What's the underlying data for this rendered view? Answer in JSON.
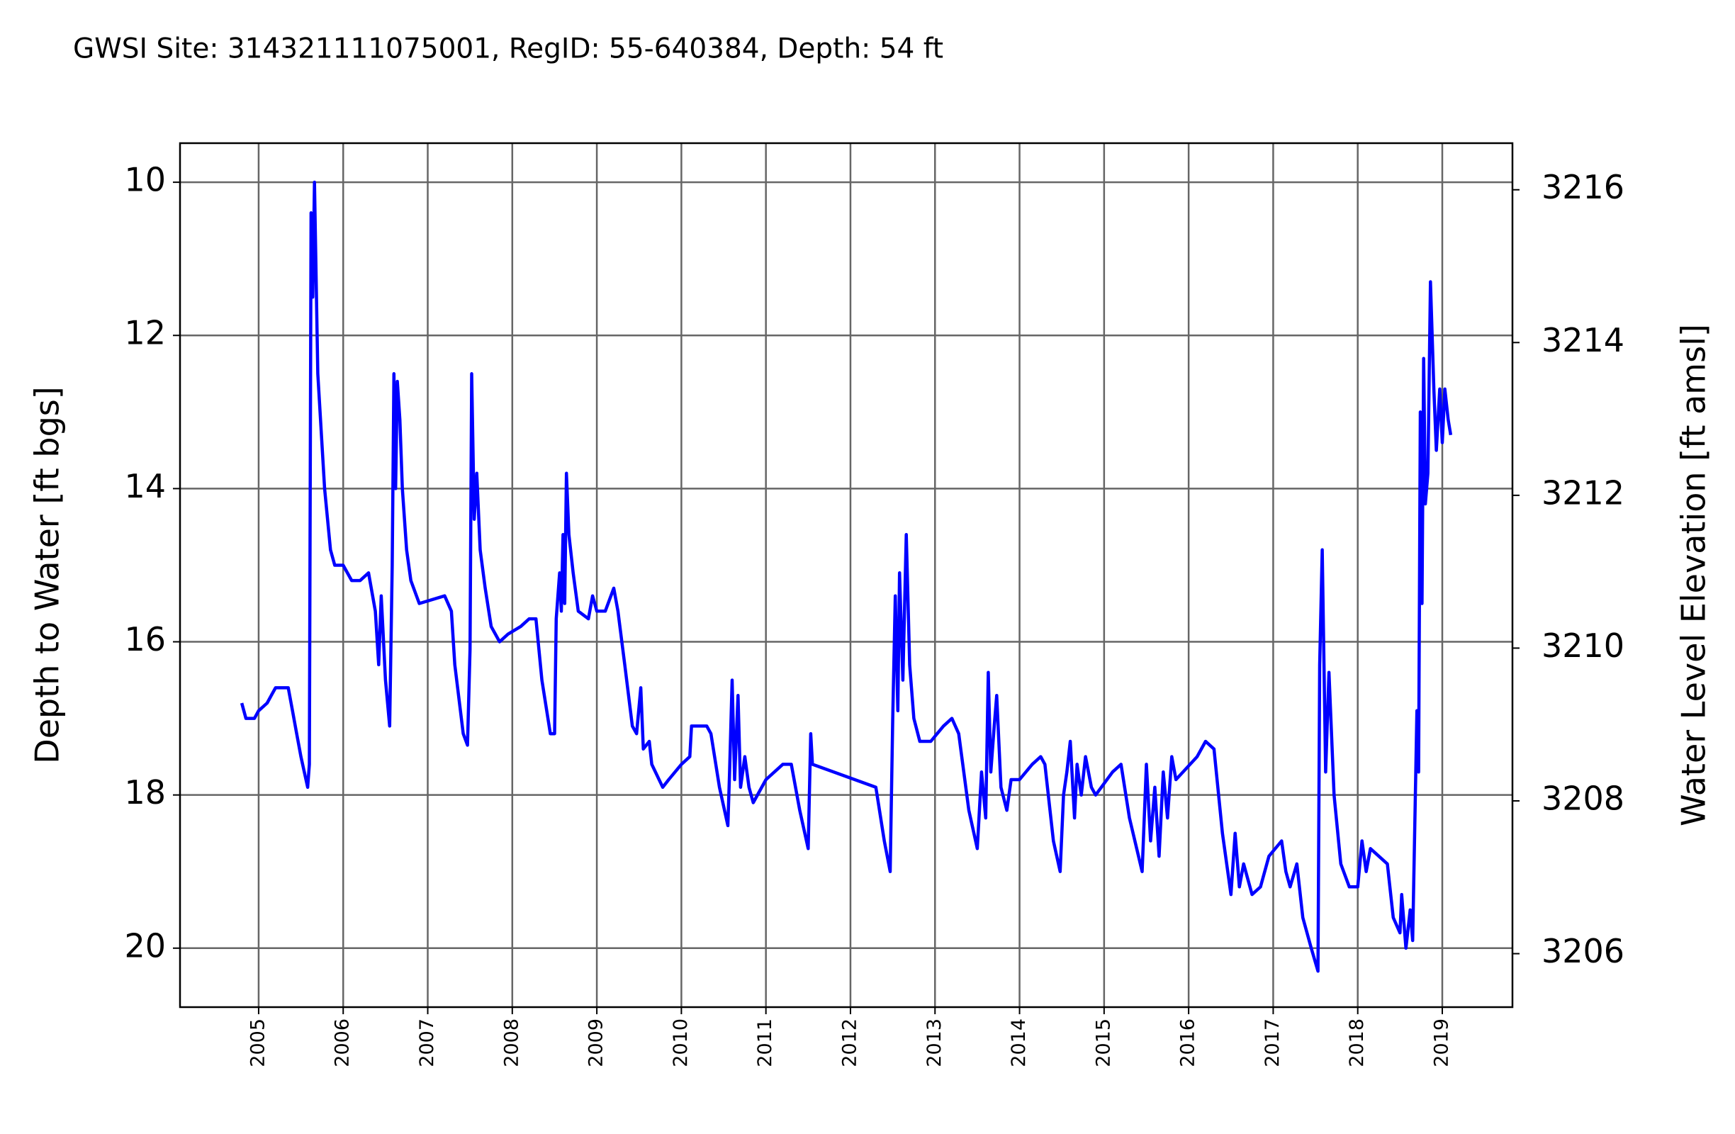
{
  "chart_data": {
    "type": "line",
    "title": "GWSI Site: 314321111075001, RegID: 55-640384, Depth: 54 ft",
    "y_label": "Depth to Water [ft bgs]",
    "y2_label": "Water Level Elevation [ft amsl]",
    "y2_color": "green",
    "color": "blue",
    "grid": true,
    "xlim": [
      2004.07,
      2019.83
    ],
    "xticks": [
      2005,
      2006,
      2007,
      2008,
      2009,
      2010,
      2011,
      2012,
      2013,
      2014,
      2015,
      2016,
      2017,
      2018,
      2019
    ],
    "ylim": [
      20.77,
      9.49
    ],
    "yticks": [
      10,
      12,
      14,
      16,
      18,
      20
    ],
    "y2lim": [
      3205.3,
      3216.61
    ],
    "y2ticks": [
      3206,
      3208,
      3210,
      3212,
      3214,
      3216
    ],
    "x": [
      2004.8,
      2004.85,
      2004.95,
      2005.0,
      2005.1,
      2005.15,
      2005.2,
      2005.35,
      2005.4,
      2005.45,
      2005.5,
      2005.58,
      2005.6,
      2005.62,
      2005.64,
      2005.66,
      2005.7,
      2005.78,
      2005.85,
      2005.9,
      2006.0,
      2006.1,
      2006.2,
      2006.3,
      2006.38,
      2006.42,
      2006.45,
      2006.5,
      2006.55,
      2006.58,
      2006.6,
      2006.62,
      2006.64,
      2006.67,
      2006.7,
      2006.75,
      2006.8,
      2006.9,
      2007.2,
      2007.28,
      2007.32,
      2007.42,
      2007.47,
      2007.5,
      2007.52,
      2007.55,
      2007.58,
      2007.62,
      2007.68,
      2007.75,
      2007.85,
      2007.95,
      2008.1,
      2008.2,
      2008.28,
      2008.35,
      2008.45,
      2008.5,
      2008.52,
      2008.56,
      2008.58,
      2008.6,
      2008.62,
      2008.64,
      2008.67,
      2008.72,
      2008.78,
      2008.9,
      2008.95,
      2009.0,
      2009.1,
      2009.2,
      2009.25,
      2009.33,
      2009.42,
      2009.47,
      2009.52,
      2009.55,
      2009.62,
      2009.65,
      2009.78,
      2009.85,
      2010.0,
      2010.1,
      2010.12,
      2010.3,
      2010.35,
      2010.45,
      2010.55,
      2010.57,
      2010.6,
      2010.63,
      2010.67,
      2010.7,
      2010.75,
      2010.8,
      2010.85,
      2011.0,
      2011.2,
      2011.3,
      2011.4,
      2011.5,
      2011.53,
      2011.55,
      2012.3,
      2012.4,
      2012.47,
      2012.5,
      2012.53,
      2012.56,
      2012.58,
      2012.62,
      2012.66,
      2012.7,
      2012.75,
      2012.82,
      2012.95,
      2013.1,
      2013.2,
      2013.28,
      2013.4,
      2013.5,
      2013.55,
      2013.6,
      2013.63,
      2013.66,
      2013.7,
      2013.73,
      2013.78,
      2013.85,
      2013.9,
      2014.0,
      2014.15,
      2014.25,
      2014.3,
      2014.4,
      2014.48,
      2014.52,
      2014.56,
      2014.6,
      2014.65,
      2014.68,
      2014.73,
      2014.78,
      2014.85,
      2014.9,
      2015.1,
      2015.2,
      2015.3,
      2015.45,
      2015.5,
      2015.55,
      2015.6,
      2015.65,
      2015.7,
      2015.75,
      2015.8,
      2015.85,
      2016.1,
      2016.2,
      2016.3,
      2016.4,
      2016.5,
      2016.55,
      2016.6,
      2016.65,
      2016.75,
      2016.85,
      2016.95,
      2017.1,
      2017.15,
      2017.2,
      2017.28,
      2017.35,
      2017.45,
      2017.53,
      2017.55,
      2017.58,
      2017.62,
      2017.66,
      2017.72,
      2017.8,
      2017.9,
      2018.0,
      2018.05,
      2018.1,
      2018.15,
      2018.25,
      2018.35,
      2018.42,
      2018.5,
      2018.52,
      2018.57,
      2018.62,
      2018.65,
      2018.7,
      2018.72,
      2018.74,
      2018.76,
      2018.78,
      2018.8,
      2018.83,
      2018.86,
      2018.9,
      2018.93,
      2018.97,
      2019.0,
      2019.03,
      2019.07,
      2019.1
    ],
    "values": [
      16.8,
      17.0,
      17.0,
      16.9,
      16.8,
      16.7,
      16.6,
      16.6,
      16.9,
      17.2,
      17.5,
      17.9,
      17.6,
      10.4,
      11.5,
      10.0,
      12.5,
      14.0,
      14.8,
      15.0,
      15.0,
      15.2,
      15.2,
      15.1,
      15.6,
      16.3,
      15.4,
      16.5,
      17.1,
      15.0,
      12.5,
      14.0,
      12.6,
      13.1,
      14.0,
      14.8,
      15.2,
      15.5,
      15.4,
      15.6,
      16.3,
      17.2,
      17.35,
      16.1,
      12.5,
      14.4,
      13.8,
      14.8,
      15.3,
      15.8,
      16.0,
      15.9,
      15.8,
      15.7,
      15.7,
      16.5,
      17.2,
      17.2,
      15.7,
      15.1,
      15.6,
      14.6,
      15.5,
      13.8,
      14.6,
      15.1,
      15.6,
      15.7,
      15.4,
      15.6,
      15.6,
      15.3,
      15.6,
      16.3,
      17.1,
      17.2,
      16.6,
      17.4,
      17.3,
      17.6,
      17.9,
      17.8,
      17.6,
      17.5,
      17.1,
      17.1,
      17.2,
      17.9,
      18.4,
      17.7,
      16.5,
      17.8,
      16.7,
      17.9,
      17.5,
      17.9,
      18.1,
      17.8,
      17.6,
      17.6,
      18.2,
      18.7,
      17.2,
      17.6,
      17.9,
      18.6,
      19.0,
      17.0,
      15.4,
      16.9,
      15.1,
      16.5,
      14.6,
      16.3,
      17.0,
      17.3,
      17.3,
      17.1,
      17.0,
      17.2,
      18.2,
      18.7,
      17.7,
      18.3,
      16.4,
      17.7,
      17.1,
      16.7,
      17.9,
      18.2,
      17.8,
      17.8,
      17.6,
      17.5,
      17.6,
      18.6,
      19.0,
      18.0,
      17.7,
      17.3,
      18.3,
      17.6,
      18.0,
      17.5,
      17.9,
      18.0,
      17.7,
      17.6,
      18.3,
      19.0,
      17.6,
      18.6,
      17.9,
      18.8,
      17.7,
      18.3,
      17.5,
      17.8,
      17.5,
      17.3,
      17.4,
      18.5,
      19.3,
      18.5,
      19.2,
      18.9,
      19.3,
      19.2,
      18.8,
      18.6,
      19.0,
      19.2,
      18.9,
      19.6,
      20.0,
      20.3,
      16.3,
      14.8,
      17.7,
      16.4,
      18.0,
      18.9,
      19.2,
      19.2,
      18.6,
      19.0,
      18.7,
      18.8,
      18.9,
      19.6,
      19.8,
      19.3,
      20.0,
      19.5,
      19.9,
      16.9,
      17.7,
      13.0,
      15.5,
      12.3,
      14.2,
      13.8,
      11.3,
      12.7,
      13.5,
      12.7,
      13.4,
      12.7,
      13.1,
      13.3
    ]
  }
}
